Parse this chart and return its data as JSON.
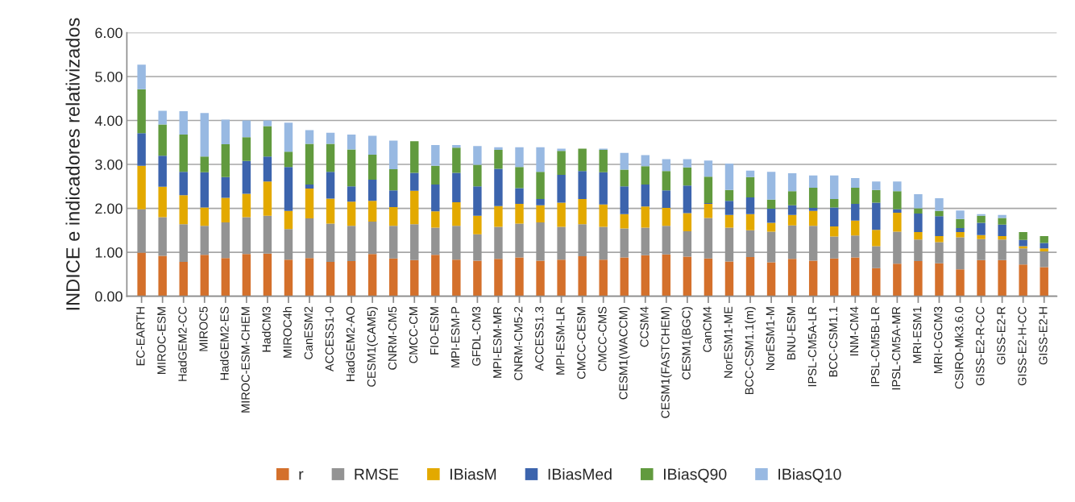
{
  "chart_data": {
    "type": "bar",
    "stacked": true,
    "ylabel": "INDICE e indicadores relativizados",
    "categories": [
      "EC-EARTH",
      "MIROC-ESM",
      "HadGEM2-CC",
      "MIROC5",
      "HadGEM2-ES",
      "MIROC-ESM-CHEM",
      "HadCM3",
      "MIROC4h",
      "CanESM2",
      "ACCESS1-0",
      "HadGEM2-AO",
      "CESM1(CAM5)",
      "CNRM-CM5",
      "CMCC-CM",
      "FIO-ESM",
      "MPI-ESM-P",
      "GFDL-CM3",
      "MPI-ESM-MR",
      "CNRM-CM5-2",
      "ACCESS1.3",
      "MPI-ESM-LR",
      "CMCC-CESM",
      "CMCC-CMS",
      "CESM1(WACCM)",
      "CCSM4",
      "CESM1(FASTCHEM)",
      "CESM1(BGC)",
      "CanCM4",
      "NorESM1-ME",
      "BCC-CSM1.1(m)",
      "NorESM1-M",
      "BNU-ESM",
      "IPSL-CM5A-LR",
      "BCC-CSM1.1",
      "INM-CM4",
      "IPSL-CM5B-LR",
      "IPSL-CM5A-MR",
      "MRI-ESM1",
      "MRI-CGCM3",
      "CSIRO-Mk3.6.0",
      "GISS-E2-R-CC",
      "GISS-E2-R",
      "GISS-E2-H-CC",
      "GISS-E2-H"
    ],
    "series": [
      {
        "name": "r",
        "color": "#d4702b",
        "values": [
          0.99,
          0.92,
          0.78,
          0.94,
          0.87,
          0.96,
          0.97,
          0.83,
          0.87,
          0.78,
          0.8,
          0.96,
          0.86,
          0.82,
          0.94,
          0.83,
          0.81,
          0.85,
          0.88,
          0.81,
          0.83,
          0.91,
          0.83,
          0.88,
          0.93,
          0.95,
          0.9,
          0.86,
          0.79,
          0.89,
          0.77,
          0.85,
          0.81,
          0.86,
          0.88,
          0.64,
          0.74,
          0.8,
          0.75,
          0.61,
          0.82,
          0.82,
          0.72,
          0.66
        ]
      },
      {
        "name": "RMSE",
        "color": "#939393",
        "values": [
          0.99,
          0.88,
          0.86,
          0.66,
          0.81,
          0.84,
          0.86,
          0.7,
          0.9,
          0.87,
          0.8,
          0.74,
          0.74,
          0.82,
          0.62,
          0.77,
          0.6,
          0.73,
          0.77,
          0.87,
          0.75,
          0.73,
          0.75,
          0.66,
          0.63,
          0.65,
          0.58,
          0.92,
          0.77,
          0.61,
          0.7,
          0.76,
          0.79,
          0.5,
          0.5,
          0.5,
          0.73,
          0.49,
          0.48,
          0.73,
          0.48,
          0.47,
          0.37,
          0.36
        ]
      },
      {
        "name": "IBiasM",
        "color": "#e3a900",
        "values": [
          0.99,
          0.69,
          0.66,
          0.42,
          0.56,
          0.53,
          0.78,
          0.41,
          0.68,
          0.57,
          0.55,
          0.47,
          0.43,
          0.76,
          0.37,
          0.54,
          0.42,
          0.47,
          0.45,
          0.39,
          0.55,
          0.57,
          0.51,
          0.33,
          0.48,
          0.41,
          0.41,
          0.32,
          0.29,
          0.37,
          0.2,
          0.24,
          0.34,
          0.23,
          0.34,
          0.37,
          0.43,
          0.17,
          0.14,
          0.12,
          0.09,
          0.08,
          0.05,
          0.07
        ]
      },
      {
        "name": "IBiasMed",
        "color": "#3c64ad",
        "values": [
          0.74,
          0.71,
          0.53,
          0.8,
          0.47,
          0.75,
          0.57,
          1.0,
          0.09,
          0.61,
          0.35,
          0.48,
          0.38,
          0.41,
          0.61,
          0.67,
          0.67,
          0.85,
          0.36,
          0.14,
          0.63,
          0.64,
          0.73,
          0.63,
          0.5,
          0.4,
          0.63,
          0.02,
          0.32,
          0.38,
          0.32,
          0.22,
          0.07,
          0.43,
          0.38,
          0.62,
          0.08,
          0.42,
          0.45,
          0.09,
          0.28,
          0.26,
          0.14,
          0.12
        ]
      },
      {
        "name": "IBiasQ90",
        "color": "#619a3e",
        "values": [
          1.0,
          0.71,
          0.85,
          0.36,
          0.75,
          0.54,
          0.69,
          0.35,
          0.93,
          0.64,
          0.84,
          0.57,
          0.48,
          0.72,
          0.43,
          0.57,
          0.49,
          0.43,
          0.48,
          0.62,
          0.55,
          0.51,
          0.51,
          0.38,
          0.42,
          0.44,
          0.41,
          0.6,
          0.25,
          0.46,
          0.21,
          0.32,
          0.46,
          0.19,
          0.37,
          0.29,
          0.41,
          0.12,
          0.12,
          0.21,
          0.16,
          0.15,
          0.18,
          0.16
        ]
      },
      {
        "name": "IBiasQ10",
        "color": "#98b9e2",
        "values": [
          0.56,
          0.31,
          0.53,
          0.99,
          0.56,
          0.38,
          0.13,
          0.66,
          0.31,
          0.25,
          0.34,
          0.43,
          0.65,
          null,
          0.47,
          0.06,
          0.43,
          0.06,
          0.45,
          0.56,
          0.05,
          null,
          0.03,
          0.38,
          0.25,
          0.27,
          0.19,
          0.37,
          0.6,
          0.15,
          0.63,
          0.41,
          0.28,
          0.54,
          0.22,
          0.19,
          0.22,
          0.32,
          0.29,
          0.19,
          0.04,
          0.07,
          null,
          null
        ]
      }
    ],
    "ylim": [
      0,
      6
    ],
    "yticks": [
      {
        "value": 0,
        "label": "0.00"
      },
      {
        "value": 1,
        "label": "1.00"
      },
      {
        "value": 2,
        "label": "2.00"
      },
      {
        "value": 3,
        "label": "3.00"
      },
      {
        "value": 4,
        "label": "4.00"
      },
      {
        "value": 5,
        "label": "5.00"
      },
      {
        "value": 6,
        "label": "6.00"
      }
    ],
    "grid": "y",
    "legend": "bottom"
  }
}
